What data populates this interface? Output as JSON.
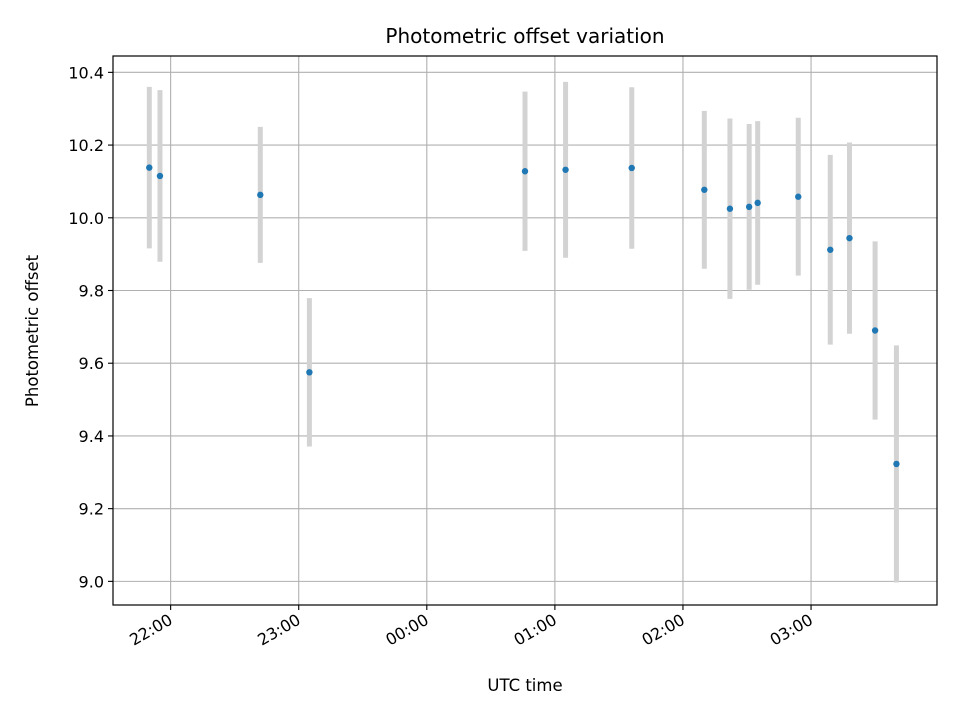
{
  "chart_data": {
    "type": "scatter",
    "title": "Photometric offset variation",
    "xlabel": "UTC time",
    "ylabel": "Photometric offset",
    "x_ticks": [
      "22:00",
      "23:00",
      "00:00",
      "01:00",
      "02:00",
      "03:00"
    ],
    "xlim": [
      "21:33",
      "03:59"
    ],
    "y_ticks": [
      "9.0",
      "9.2",
      "9.4",
      "9.6",
      "9.8",
      "10.0",
      "10.2",
      "10.4"
    ],
    "ylim": [
      8.935,
      10.445
    ],
    "grid": true,
    "errorbar_color": "#d3d3d3",
    "marker_color": "#1f77b4",
    "points": [
      {
        "x": "21:50",
        "y": 10.138,
        "err": 0.222
      },
      {
        "x": "21:55",
        "y": 10.115,
        "err": 0.236
      },
      {
        "x": "22:42",
        "y": 10.063,
        "err": 0.187
      },
      {
        "x": "23:05",
        "y": 9.575,
        "err": 0.204
      },
      {
        "x": "00:46",
        "y": 10.128,
        "err": 0.219
      },
      {
        "x": "01:05",
        "y": 10.132,
        "err": 0.242
      },
      {
        "x": "01:36",
        "y": 10.137,
        "err": 0.222
      },
      {
        "x": "02:10",
        "y": 10.077,
        "err": 0.217
      },
      {
        "x": "02:22",
        "y": 10.025,
        "err": 0.248
      },
      {
        "x": "02:31",
        "y": 10.03,
        "err": 0.228
      },
      {
        "x": "02:35",
        "y": 10.041,
        "err": 0.225
      },
      {
        "x": "02:54",
        "y": 10.058,
        "err": 0.217
      },
      {
        "x": "03:09",
        "y": 9.912,
        "err": 0.261
      },
      {
        "x": "03:18",
        "y": 9.944,
        "err": 0.263
      },
      {
        "x": "03:30",
        "y": 9.69,
        "err": 0.245
      },
      {
        "x": "03:40",
        "y": 9.323,
        "err": 0.326
      }
    ]
  }
}
